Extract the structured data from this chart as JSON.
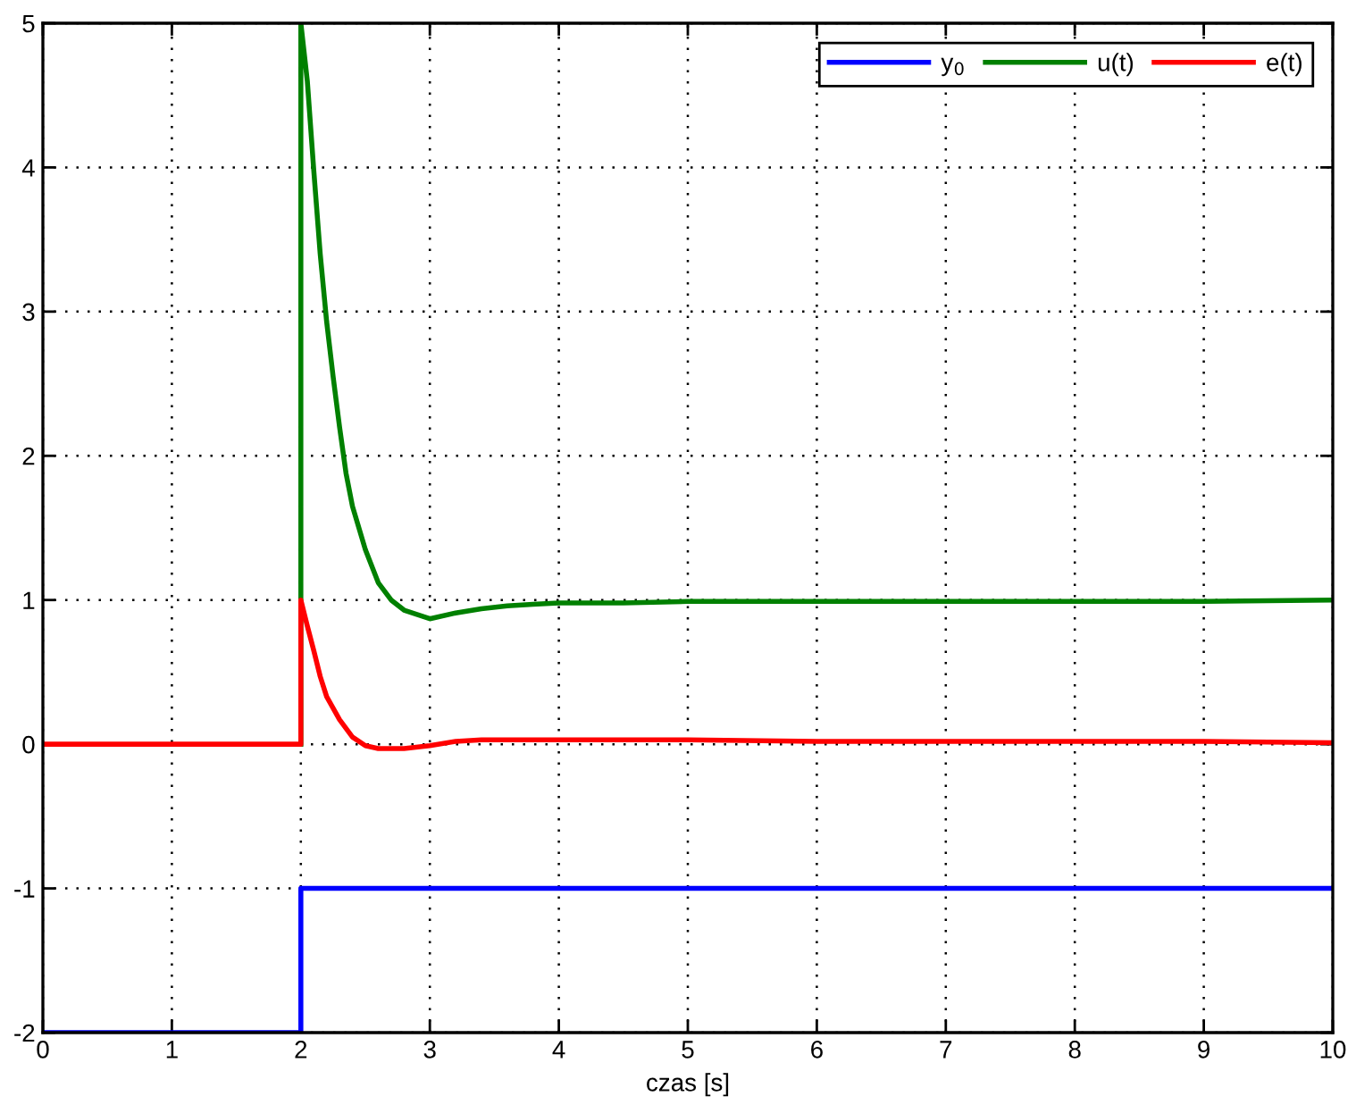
{
  "chart_data": {
    "type": "line",
    "xlabel": "czas [s]",
    "xlim": [
      0,
      10
    ],
    "ylim": [
      -2,
      5
    ],
    "xticks": [
      0,
      1,
      2,
      3,
      4,
      5,
      6,
      7,
      8,
      9,
      10
    ],
    "yticks": [
      -2,
      -1,
      0,
      1,
      2,
      3,
      4,
      5
    ],
    "grid": true,
    "legend": "top right",
    "series": [
      {
        "name": "y$_{0}$",
        "color": "#0000ff",
        "x": [
          0,
          2,
          2,
          10
        ],
        "values": [
          -2,
          -2,
          -1,
          -1
        ]
      },
      {
        "name": "u(t)",
        "color": "#008000",
        "x": [
          2,
          2,
          2.05,
          2.1,
          2.15,
          2.2,
          2.25,
          2.3,
          2.35,
          2.4,
          2.5,
          2.6,
          2.7,
          2.8,
          2.9,
          3.0,
          3.2,
          3.4,
          3.6,
          3.8,
          4.0,
          4.5,
          5,
          6,
          7,
          8,
          9,
          10
        ],
        "values": [
          0,
          5,
          4.6,
          3.98,
          3.4,
          2.93,
          2.55,
          2.2,
          1.88,
          1.65,
          1.35,
          1.12,
          1.0,
          0.93,
          0.9,
          0.87,
          0.91,
          0.94,
          0.96,
          0.97,
          0.98,
          0.98,
          0.99,
          0.99,
          0.99,
          0.99,
          0.99,
          1.0
        ]
      },
      {
        "name": "e(t)",
        "color": "#ff0000",
        "x": [
          0,
          2,
          2,
          2.05,
          2.1,
          2.15,
          2.2,
          2.3,
          2.4,
          2.5,
          2.6,
          2.8,
          3.0,
          3.2,
          3.4,
          3.7,
          4,
          5,
          6,
          7,
          8,
          9,
          10
        ],
        "values": [
          0,
          0,
          1,
          0.82,
          0.65,
          0.47,
          0.33,
          0.17,
          0.05,
          -0.01,
          -0.03,
          -0.03,
          -0.01,
          0.02,
          0.03,
          0.03,
          0.03,
          0.03,
          0.02,
          0.02,
          0.02,
          0.02,
          0.01
        ]
      }
    ]
  }
}
